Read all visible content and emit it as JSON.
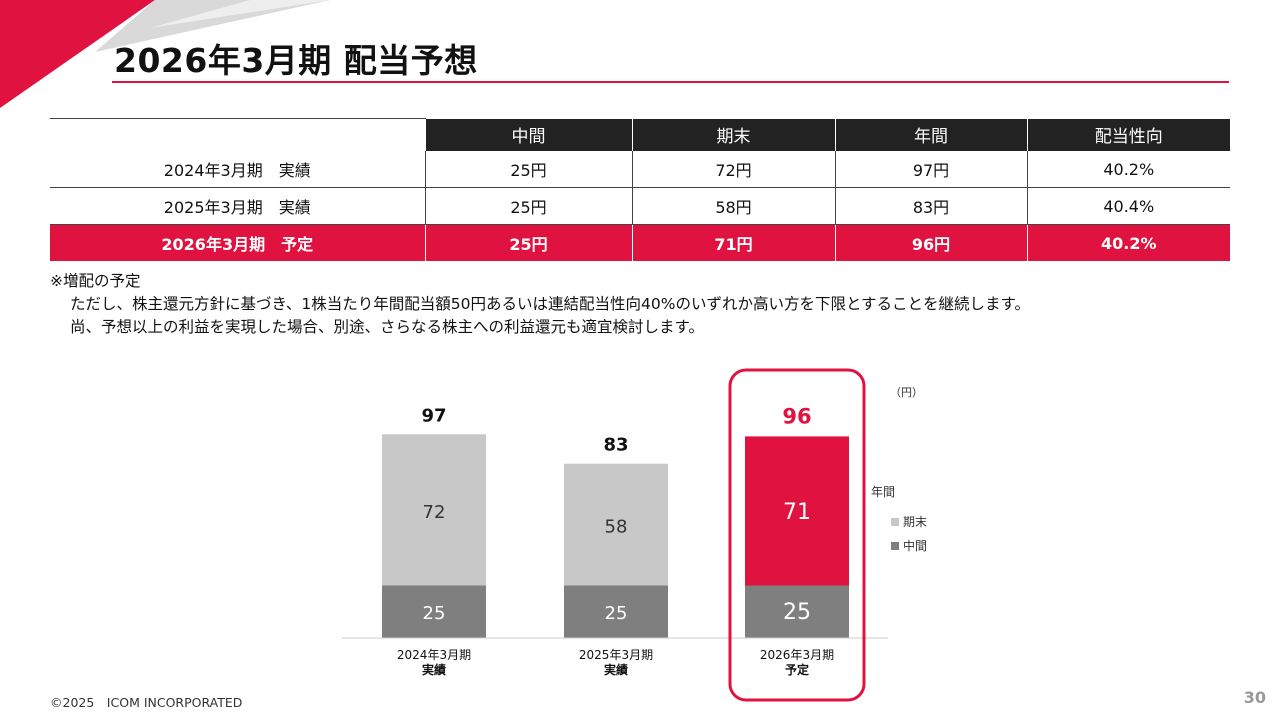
{
  "title": "2026年3月期 配当予想",
  "table": {
    "headers": [
      "",
      "中間",
      "期末",
      "年間",
      "配当性向"
    ],
    "rows": [
      {
        "label": "2024年3月期　実績",
        "interim": "25円",
        "year_end": "72円",
        "annual": "97円",
        "payout": "40.2%"
      },
      {
        "label": "2025年3月期　実績",
        "interim": "25円",
        "year_end": "58円",
        "annual": "83円",
        "payout": "40.4%"
      },
      {
        "label": "2026年3月期　予定",
        "interim": "25円",
        "year_end": "71円",
        "annual": "96円",
        "payout": "40.2%"
      }
    ]
  },
  "notes": {
    "line1": "※増配の予定",
    "line2": "ただし、株主還元方針に基づき、1株当たり年間配当額50円あるいは連結配当性向40%のいずれか高い方を下限とすることを継続します。",
    "line3": "尚、予想以上の利益を実現した場合、別途、さらなる株主への利益還元も適宜検討します。"
  },
  "chart_data": {
    "type": "bar",
    "stacked": true,
    "unit": "（円）",
    "categories": [
      {
        "line1": "2024年3月期",
        "line2": "実績"
      },
      {
        "line1": "2025年3月期",
        "line2": "実績"
      },
      {
        "line1": "2026年3月期",
        "line2": "予定"
      }
    ],
    "series": [
      {
        "name": "中間",
        "values": [
          25,
          25,
          25
        ],
        "color": "#7f7f7f"
      },
      {
        "name": "期末",
        "values": [
          72,
          58,
          71
        ],
        "color": "#c8c8c8"
      }
    ],
    "totals": [
      97,
      83,
      96
    ],
    "totals_label": "年間",
    "highlight_index": 2,
    "highlight_color": "#e0123f",
    "ylim": [
      0,
      100
    ]
  },
  "footer": {
    "copyright": "©2025　ICOM INCORPORATED",
    "page": "30"
  },
  "colors": {
    "accent": "#e0123f",
    "header_bg": "#222222"
  }
}
